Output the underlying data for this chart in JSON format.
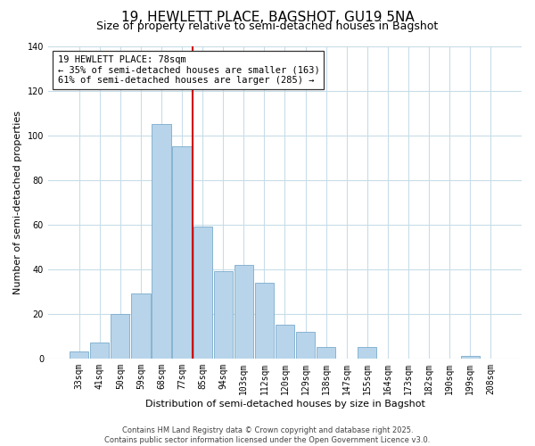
{
  "title": "19, HEWLETT PLACE, BAGSHOT, GU19 5NA",
  "subtitle": "Size of property relative to semi-detached houses in Bagshot",
  "xlabel": "Distribution of semi-detached houses by size in Bagshot",
  "ylabel": "Number of semi-detached properties",
  "bar_labels": [
    "33sqm",
    "41sqm",
    "50sqm",
    "59sqm",
    "68sqm",
    "77sqm",
    "85sqm",
    "94sqm",
    "103sqm",
    "112sqm",
    "120sqm",
    "129sqm",
    "138sqm",
    "147sqm",
    "155sqm",
    "164sqm",
    "173sqm",
    "182sqm",
    "190sqm",
    "199sqm",
    "208sqm"
  ],
  "bar_values": [
    3,
    7,
    20,
    29,
    105,
    95,
    59,
    39,
    42,
    34,
    15,
    12,
    5,
    0,
    5,
    0,
    0,
    0,
    0,
    1,
    0
  ],
  "bar_color": "#b8d4ea",
  "bar_edge_color": "#7aabcc",
  "vline_index": 5,
  "vline_color": "#cc0000",
  "annotation_title": "19 HEWLETT PLACE: 78sqm",
  "annotation_line1": "← 35% of semi-detached houses are smaller (163)",
  "annotation_line2": "61% of semi-detached houses are larger (285) →",
  "annotation_box_color": "#ffffff",
  "annotation_box_edge": "#333333",
  "ylim": [
    0,
    140
  ],
  "yticks": [
    0,
    20,
    40,
    60,
    80,
    100,
    120,
    140
  ],
  "footer1": "Contains HM Land Registry data © Crown copyright and database right 2025.",
  "footer2": "Contains public sector information licensed under the Open Government Licence v3.0.",
  "bg_color": "#ffffff",
  "grid_color": "#c8dde8",
  "title_fontsize": 11,
  "subtitle_fontsize": 9,
  "label_fontsize": 8,
  "tick_fontsize": 7,
  "annotation_fontsize": 7.5,
  "footer_fontsize": 6
}
